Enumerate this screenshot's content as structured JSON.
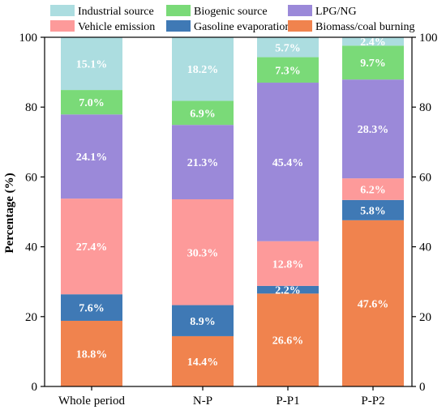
{
  "chart_data": {
    "type": "bar",
    "stacked": true,
    "ylabel": "Percentage (%)",
    "ylim": [
      0,
      100
    ],
    "yticks": [
      0,
      20,
      40,
      60,
      80,
      100
    ],
    "right_axis": true,
    "grid": false,
    "legend_placement": "top",
    "categories": [
      "Whole period",
      "N-P",
      "P-P1",
      "P-P2"
    ],
    "series": [
      {
        "name": "Biomass/coal burning",
        "color": "#F0834E",
        "values": [
          18.8,
          14.4,
          26.6,
          47.6
        ],
        "labels": [
          "18.8%",
          "14.4%",
          "26.6%",
          "47.6%"
        ]
      },
      {
        "name": "Gasoline evaporation",
        "color": "#3F79B5",
        "values": [
          7.6,
          8.9,
          2.2,
          5.8
        ],
        "labels": [
          "7.6%",
          "8.9%",
          "2.2%",
          "5.8%"
        ]
      },
      {
        "name": "Vehicle emission",
        "color": "#FD9A9A",
        "values": [
          27.4,
          30.3,
          12.8,
          6.2
        ],
        "labels": [
          "27.4%",
          "30.3%",
          "12.8%",
          "6.2%"
        ]
      },
      {
        "name": "LPG/NG",
        "color": "#9B89D9",
        "values": [
          24.1,
          21.3,
          45.4,
          28.3
        ],
        "labels": [
          "24.1%",
          "21.3%",
          "45.4%",
          "28.3%"
        ]
      },
      {
        "name": "Biogenic source",
        "color": "#7ADA78",
        "values": [
          7.0,
          6.9,
          7.3,
          9.7
        ],
        "labels": [
          "7.0%",
          "6.9%",
          "7.3%",
          "9.7%"
        ]
      },
      {
        "name": "Industrial source",
        "color": "#ACDDE0",
        "values": [
          15.1,
          18.2,
          5.7,
          2.4
        ],
        "labels": [
          "15.1%",
          "18.2%",
          "5.7%",
          "2.4%"
        ]
      }
    ],
    "legend_order": [
      "Industrial source",
      "Biogenic source",
      "LPG/NG",
      "Vehicle emission",
      "Gasoline evaporation",
      "Biomass/coal burning"
    ]
  }
}
